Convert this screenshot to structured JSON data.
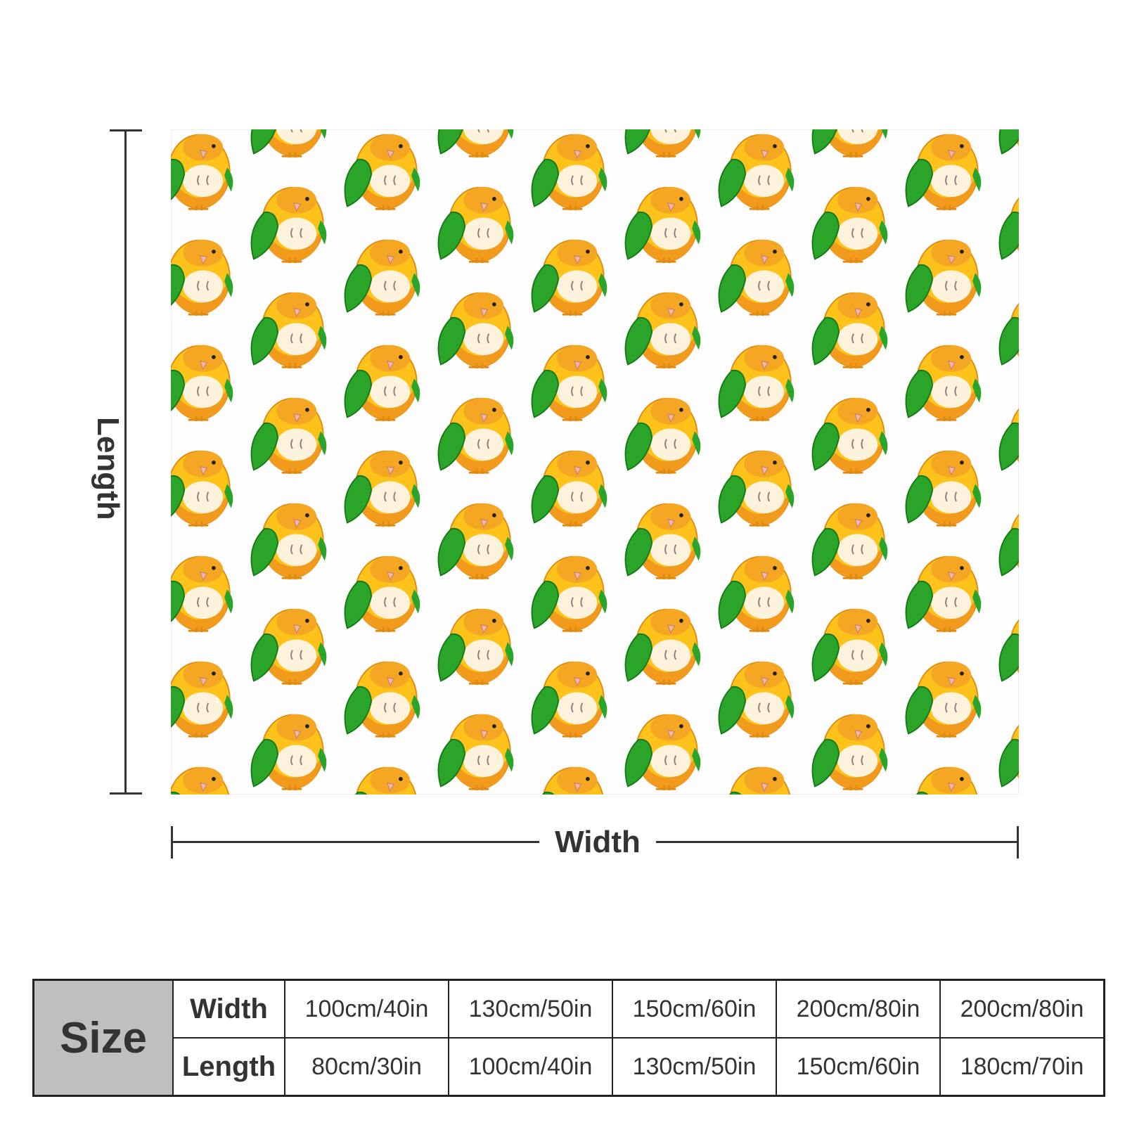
{
  "product": {
    "name": "throw blanket",
    "pattern": "caique-parrot-repeat",
    "colors": {
      "background": "#fdfdfd",
      "bird_yellow": "#ffc21a",
      "bird_orange": "#f29a1c",
      "wing_green": "#2aa52a",
      "belly": "#fdf3dc"
    }
  },
  "dimensions": {
    "length_label": "Length",
    "width_label": "Width"
  },
  "size_table": {
    "header": "Size",
    "width_label": "Width",
    "length_label": "Length",
    "widths": [
      "100cm/40in",
      "130cm/50in",
      "150cm/60in",
      "200cm/80in",
      "200cm/80in"
    ],
    "lengths": [
      "80cm/30in",
      "100cm/40in",
      "130cm/50in",
      "150cm/60in",
      "180cm/70in"
    ]
  }
}
